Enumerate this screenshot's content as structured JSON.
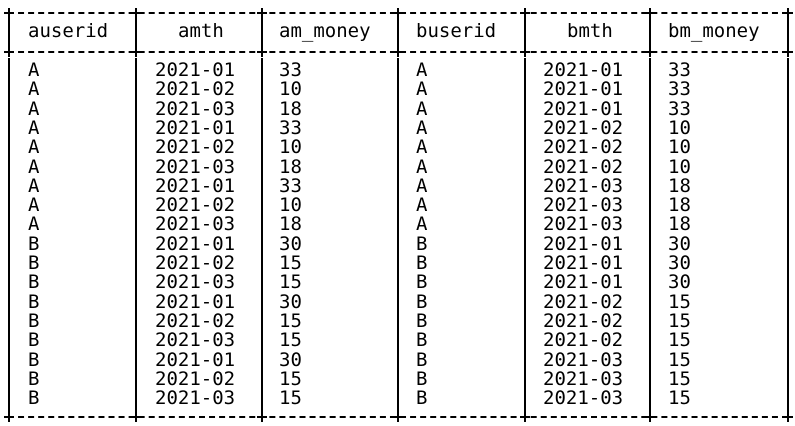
{
  "table": {
    "columns": [
      "auserid",
      "amth",
      "am_money",
      "buserid",
      "bmth",
      "bm_money"
    ],
    "rows": [
      [
        "A",
        "2021-01",
        "33",
        "A",
        "2021-01",
        "33"
      ],
      [
        "A",
        "2021-02",
        "10",
        "A",
        "2021-01",
        "33"
      ],
      [
        "A",
        "2021-03",
        "18",
        "A",
        "2021-01",
        "33"
      ],
      [
        "A",
        "2021-01",
        "33",
        "A",
        "2021-02",
        "10"
      ],
      [
        "A",
        "2021-02",
        "10",
        "A",
        "2021-02",
        "10"
      ],
      [
        "A",
        "2021-03",
        "18",
        "A",
        "2021-02",
        "10"
      ],
      [
        "A",
        "2021-01",
        "33",
        "A",
        "2021-03",
        "18"
      ],
      [
        "A",
        "2021-02",
        "10",
        "A",
        "2021-03",
        "18"
      ],
      [
        "A",
        "2021-03",
        "18",
        "A",
        "2021-03",
        "18"
      ],
      [
        "B",
        "2021-01",
        "30",
        "B",
        "2021-01",
        "30"
      ],
      [
        "B",
        "2021-02",
        "15",
        "B",
        "2021-01",
        "30"
      ],
      [
        "B",
        "2021-03",
        "15",
        "B",
        "2021-01",
        "30"
      ],
      [
        "B",
        "2021-01",
        "30",
        "B",
        "2021-02",
        "15"
      ],
      [
        "B",
        "2021-02",
        "15",
        "B",
        "2021-02",
        "15"
      ],
      [
        "B",
        "2021-03",
        "15",
        "B",
        "2021-02",
        "15"
      ],
      [
        "B",
        "2021-01",
        "30",
        "B",
        "2021-03",
        "15"
      ],
      [
        "B",
        "2021-02",
        "15",
        "B",
        "2021-03",
        "15"
      ],
      [
        "B",
        "2021-03",
        "15",
        "B",
        "2021-03",
        "15"
      ]
    ]
  }
}
